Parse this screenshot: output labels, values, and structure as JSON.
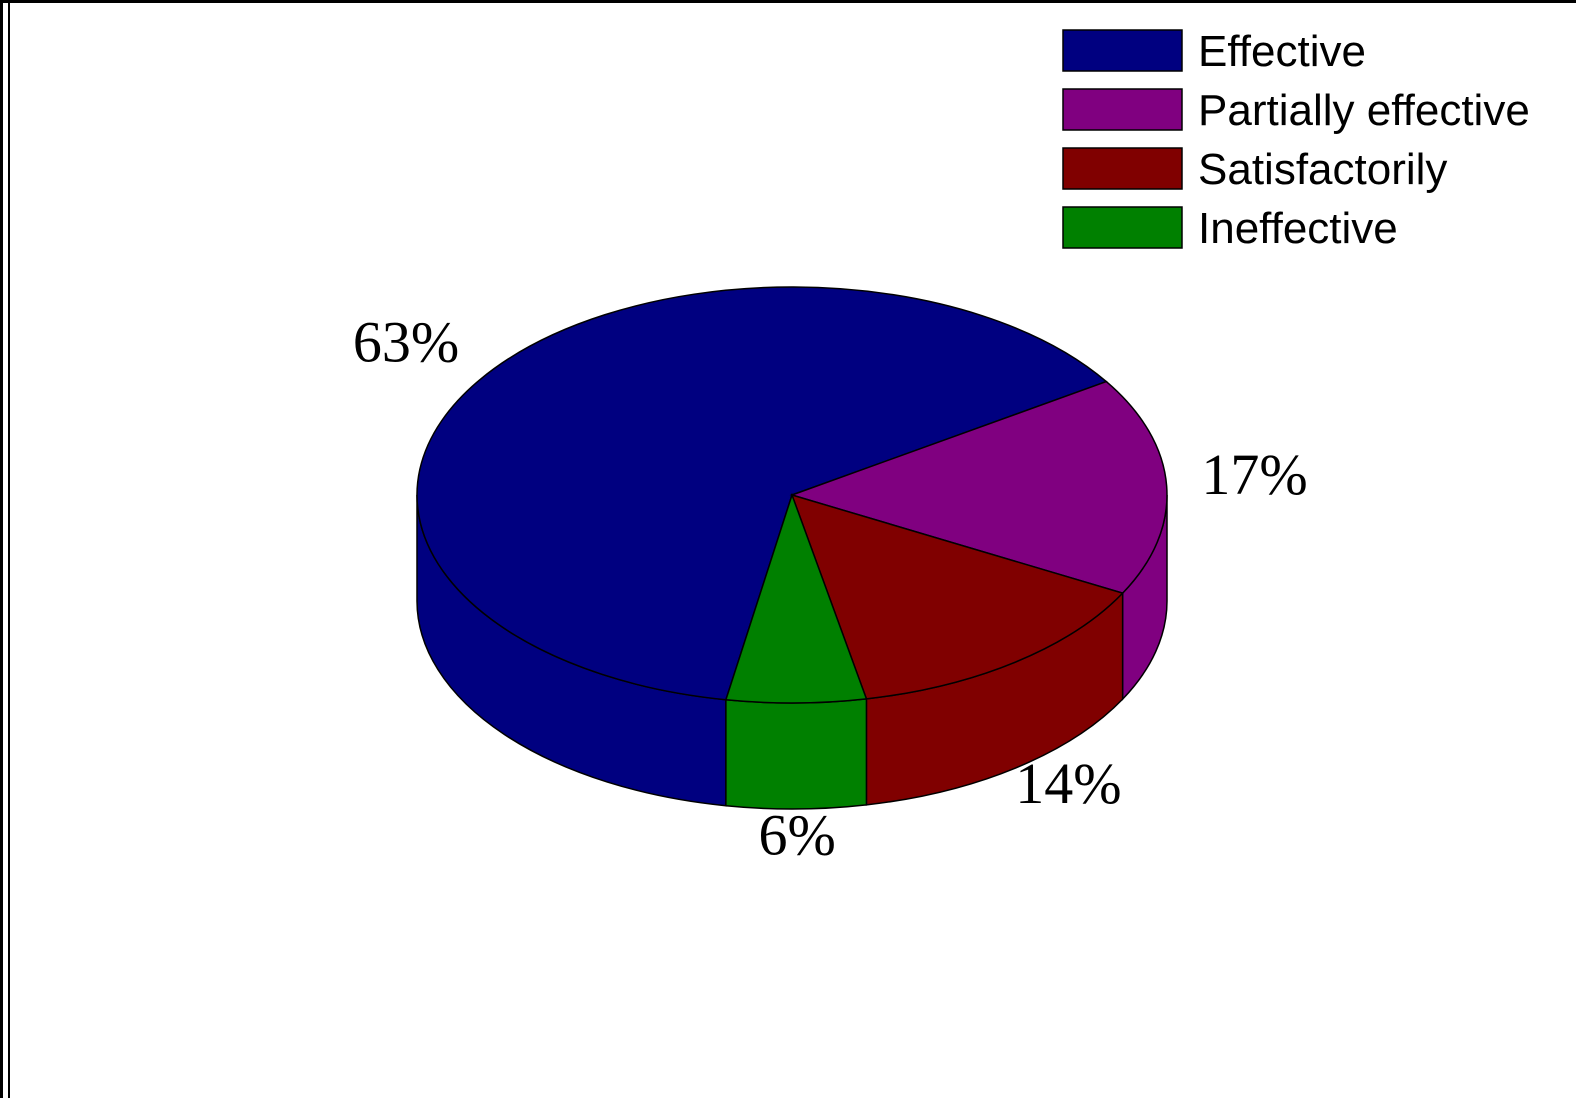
{
  "chart_data": {
    "type": "pie",
    "title": "",
    "three_d": true,
    "legend_position": "top-right",
    "slices": [
      {
        "name": "Effective",
        "value": 63,
        "label": "63%",
        "color": "#000080"
      },
      {
        "name": "Partially effective",
        "value": 17,
        "label": "17%",
        "color": "#800080"
      },
      {
        "name": "Satisfactorily",
        "value": 14,
        "label": "14%",
        "color": "#800000"
      },
      {
        "name": "Ineffective",
        "value": 6,
        "label": "6%",
        "color": "#008000"
      }
    ]
  }
}
